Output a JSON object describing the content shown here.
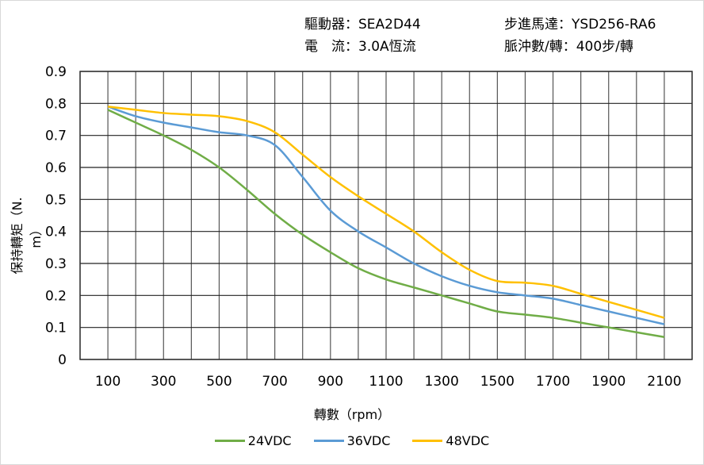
{
  "header": {
    "driver_label": "驅動器：SEA2D44",
    "motor_label": "步進馬達：YSD256-RA6",
    "current_label": "電　流：3.0A恆流",
    "pulse_label": "脈沖數/轉：400步/轉"
  },
  "chart_data": {
    "type": "line",
    "title": "",
    "xlabel": "轉數（rpm）",
    "ylabel": "保持轉矩（N. m）",
    "xlim": [
      0,
      2200
    ],
    "ylim": [
      0,
      0.9
    ],
    "x_ticks": [
      "100",
      "300",
      "500",
      "700",
      "900",
      "1100",
      "1300",
      "1500",
      "1700",
      "1900",
      "2100"
    ],
    "y_ticks": [
      "0",
      "0.1",
      "0.2",
      "0.3",
      "0.4",
      "0.5",
      "0.6",
      "0.7",
      "0.8",
      "0.9"
    ],
    "grid": true,
    "legend_position": "bottom",
    "x": [
      100,
      200,
      300,
      400,
      500,
      600,
      700,
      800,
      900,
      1000,
      1100,
      1200,
      1300,
      1400,
      1500,
      1600,
      1700,
      1800,
      1900,
      2000,
      2100
    ],
    "series": [
      {
        "name": "24VDC",
        "color": "#70ad47",
        "values": [
          0.78,
          0.74,
          0.7,
          0.655,
          0.6,
          0.53,
          0.455,
          0.39,
          0.335,
          0.285,
          0.25,
          0.225,
          0.2,
          0.175,
          0.15,
          0.14,
          0.13,
          0.115,
          0.1,
          0.085,
          0.07
        ]
      },
      {
        "name": "36VDC",
        "color": "#5b9bd5",
        "values": [
          0.79,
          0.76,
          0.74,
          0.725,
          0.71,
          0.7,
          0.67,
          0.57,
          0.465,
          0.4,
          0.35,
          0.3,
          0.26,
          0.23,
          0.21,
          0.2,
          0.19,
          0.17,
          0.15,
          0.13,
          0.11
        ]
      },
      {
        "name": "48VDC",
        "color": "#ffc000",
        "values": [
          0.79,
          0.78,
          0.77,
          0.765,
          0.76,
          0.745,
          0.71,
          0.64,
          0.57,
          0.51,
          0.455,
          0.4,
          0.335,
          0.28,
          0.245,
          0.24,
          0.23,
          0.205,
          0.18,
          0.155,
          0.13
        ]
      }
    ]
  }
}
